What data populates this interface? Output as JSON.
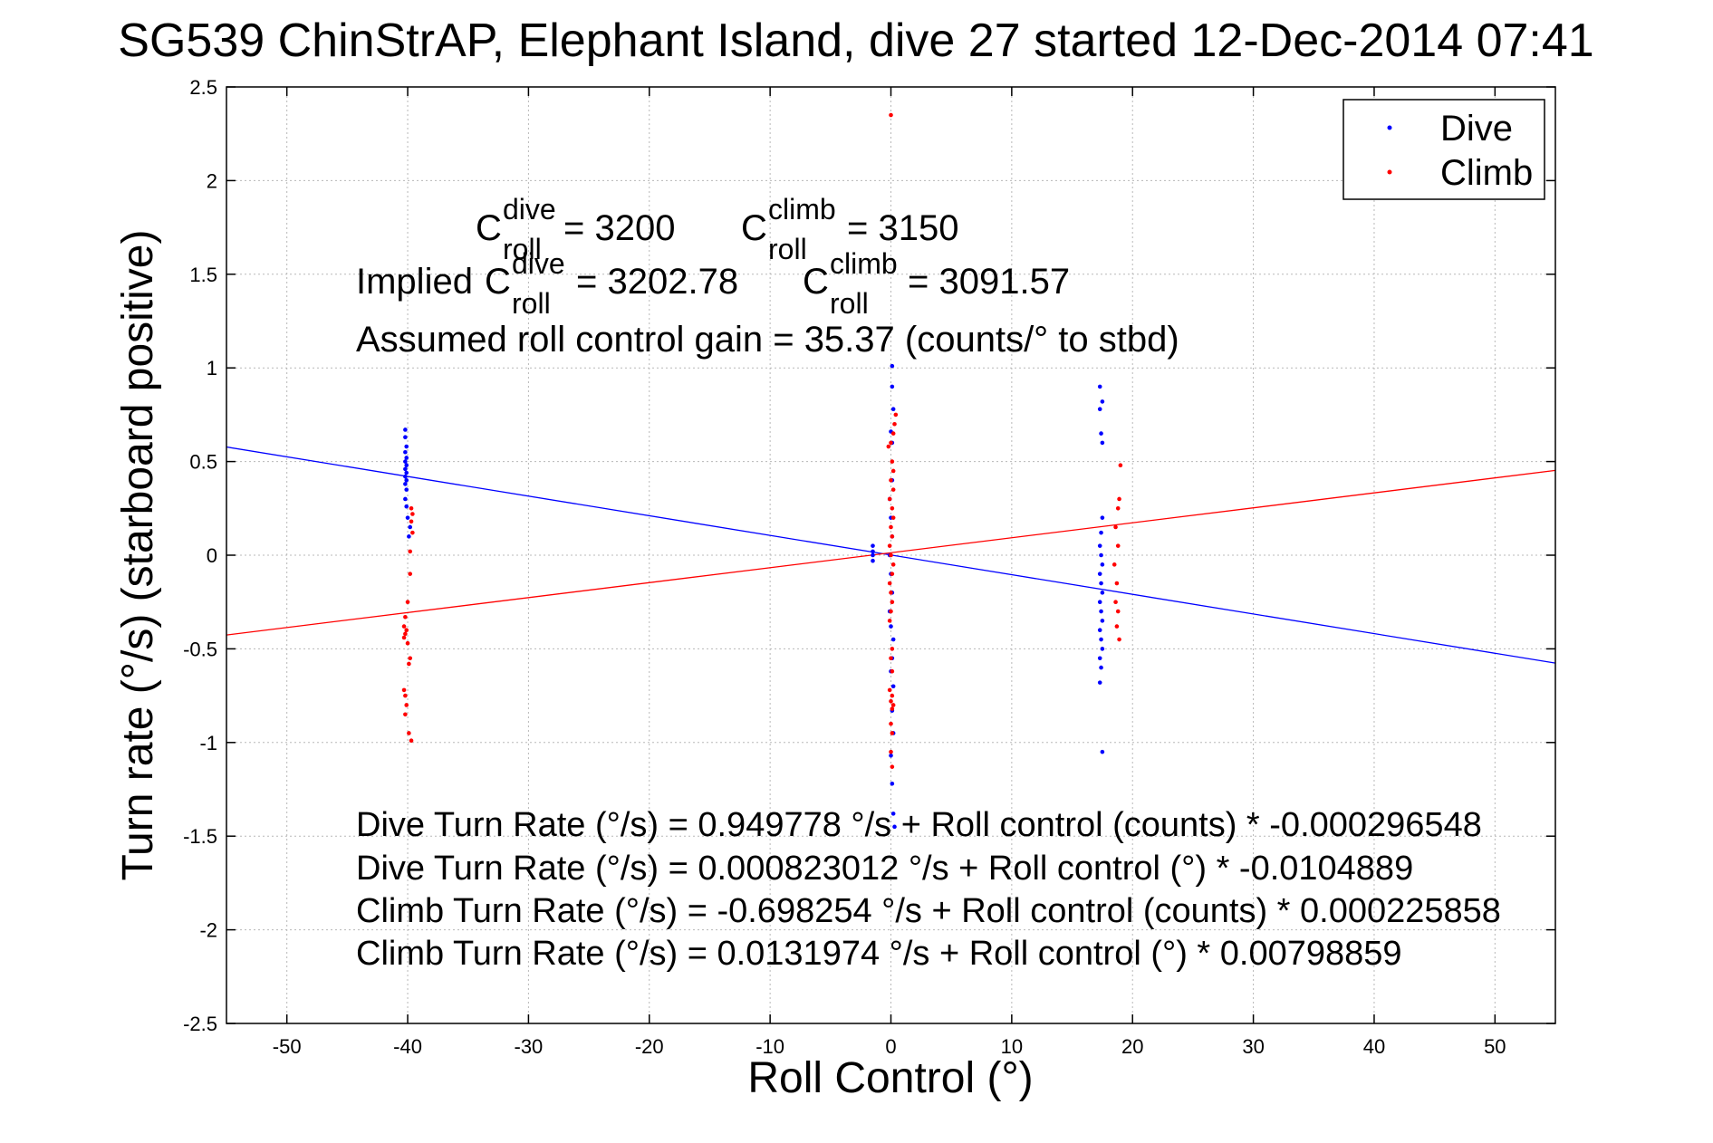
{
  "chart_data": {
    "type": "scatter",
    "title": "SG539 ChinStrAP, Elephant Island, dive 27 started 12-Dec-2014 07:41",
    "xlabel": "Roll Control (°)",
    "ylabel": "Turn rate (°/s) (starboard positive)",
    "xlim": [
      -55,
      55
    ],
    "ylim": [
      -2.5,
      2.5
    ],
    "xticks": [
      -50,
      -40,
      -30,
      -20,
      -10,
      0,
      10,
      20,
      30,
      40,
      50
    ],
    "yticks": [
      -2.5,
      -2,
      -1.5,
      -1,
      -0.5,
      0,
      0.5,
      1,
      1.5,
      2,
      2.5
    ],
    "xtick_labels": [
      "-50",
      "-40",
      "-30",
      "-20",
      "-10",
      "0",
      "10",
      "20",
      "30",
      "40",
      "50"
    ],
    "ytick_labels": [
      "-2.5",
      "-2",
      "-1.5",
      "-1",
      "-0.5",
      "0",
      "0.5",
      "1",
      "1.5",
      "2",
      "2.5"
    ],
    "grid": true,
    "legend_position": "top-right",
    "colors": {
      "dive": "#0000ff",
      "climb": "#ff0000"
    },
    "legend": [
      "Dive",
      "Climb"
    ],
    "series": [
      {
        "name": "Dive",
        "color": "#0000ff",
        "points": [
          [
            -40.2,
            0.67
          ],
          [
            -40.2,
            0.63
          ],
          [
            -40.1,
            0.58
          ],
          [
            -40.2,
            0.55
          ],
          [
            -40.1,
            0.52
          ],
          [
            -40.2,
            0.5
          ],
          [
            -40.1,
            0.48
          ],
          [
            -40.2,
            0.46
          ],
          [
            -40.1,
            0.44
          ],
          [
            -40.2,
            0.42
          ],
          [
            -40.1,
            0.4
          ],
          [
            -40.2,
            0.38
          ],
          [
            -40.1,
            0.35
          ],
          [
            -40.2,
            0.3
          ],
          [
            -40.1,
            0.26
          ],
          [
            -40.0,
            0.2
          ],
          [
            -39.8,
            0.15
          ],
          [
            -39.9,
            0.1
          ],
          [
            -1.5,
            0.05
          ],
          [
            -1.5,
            0.02
          ],
          [
            -1.5,
            0.0
          ],
          [
            -1.5,
            -0.03
          ],
          [
            0.1,
            1.01
          ],
          [
            0.1,
            0.9
          ],
          [
            0.2,
            0.78
          ],
          [
            0.0,
            0.66
          ],
          [
            0.1,
            0.6
          ],
          [
            0.1,
            0.4
          ],
          [
            -0.1,
            0.3
          ],
          [
            0.0,
            0.2
          ],
          [
            0.1,
            0.1
          ],
          [
            -0.1,
            0.0
          ],
          [
            0.0,
            -0.1
          ],
          [
            0.1,
            -0.2
          ],
          [
            -0.1,
            -0.3
          ],
          [
            0.0,
            -0.38
          ],
          [
            0.2,
            -0.45
          ],
          [
            0.1,
            -0.55
          ],
          [
            0.0,
            -0.62
          ],
          [
            0.2,
            -0.7
          ],
          [
            0.1,
            -0.83
          ],
          [
            0.2,
            -0.95
          ],
          [
            0.0,
            -1.07
          ],
          [
            0.1,
            -1.22
          ],
          [
            0.2,
            -1.38
          ],
          [
            0.3,
            -1.45
          ],
          [
            17.3,
            0.9
          ],
          [
            17.5,
            0.82
          ],
          [
            17.3,
            0.78
          ],
          [
            17.4,
            0.65
          ],
          [
            17.5,
            0.6
          ],
          [
            17.5,
            0.2
          ],
          [
            17.4,
            0.12
          ],
          [
            17.3,
            0.05
          ],
          [
            17.4,
            0.0
          ],
          [
            17.5,
            -0.05
          ],
          [
            17.3,
            -0.1
          ],
          [
            17.4,
            -0.15
          ],
          [
            17.5,
            -0.2
          ],
          [
            17.3,
            -0.25
          ],
          [
            17.4,
            -0.3
          ],
          [
            17.5,
            -0.35
          ],
          [
            17.3,
            -0.4
          ],
          [
            17.4,
            -0.45
          ],
          [
            17.5,
            -0.5
          ],
          [
            17.3,
            -0.55
          ],
          [
            17.4,
            -0.6
          ],
          [
            17.3,
            -0.68
          ],
          [
            17.5,
            -1.05
          ]
        ]
      },
      {
        "name": "Climb",
        "color": "#ff0000",
        "points": [
          [
            -39.7,
            0.25
          ],
          [
            -39.6,
            0.22
          ],
          [
            -39.7,
            0.18
          ],
          [
            -39.6,
            0.12
          ],
          [
            -39.8,
            0.02
          ],
          [
            -39.8,
            -0.1
          ],
          [
            -40.0,
            -0.25
          ],
          [
            -40.2,
            -0.33
          ],
          [
            -40.3,
            -0.38
          ],
          [
            -40.1,
            -0.4
          ],
          [
            -40.2,
            -0.42
          ],
          [
            -40.3,
            -0.44
          ],
          [
            -40.0,
            -0.47
          ],
          [
            -39.8,
            -0.55
          ],
          [
            -39.9,
            -0.58
          ],
          [
            -40.3,
            -0.72
          ],
          [
            -40.2,
            -0.75
          ],
          [
            -40.1,
            -0.8
          ],
          [
            -40.2,
            -0.85
          ],
          [
            -39.9,
            -0.95
          ],
          [
            -39.7,
            -0.99
          ],
          [
            0.0,
            2.35
          ],
          [
            0.4,
            0.75
          ],
          [
            0.3,
            0.7
          ],
          [
            0.2,
            0.65
          ],
          [
            0.0,
            0.6
          ],
          [
            -0.2,
            0.58
          ],
          [
            0.1,
            0.5
          ],
          [
            0.2,
            0.45
          ],
          [
            0.0,
            0.4
          ],
          [
            0.2,
            0.35
          ],
          [
            -0.1,
            0.3
          ],
          [
            0.1,
            0.25
          ],
          [
            0.2,
            0.2
          ],
          [
            0.0,
            0.15
          ],
          [
            0.1,
            0.1
          ],
          [
            -0.1,
            0.05
          ],
          [
            0.0,
            0.0
          ],
          [
            0.2,
            -0.05
          ],
          [
            0.1,
            -0.1
          ],
          [
            -0.1,
            -0.15
          ],
          [
            0.0,
            -0.2
          ],
          [
            0.1,
            -0.25
          ],
          [
            0.0,
            -0.3
          ],
          [
            -0.1,
            -0.35
          ],
          [
            0.1,
            -0.5
          ],
          [
            0.0,
            -0.55
          ],
          [
            0.1,
            -0.62
          ],
          [
            -0.1,
            -0.72
          ],
          [
            0.1,
            -0.75
          ],
          [
            0.0,
            -0.78
          ],
          [
            0.2,
            -0.8
          ],
          [
            0.1,
            -0.82
          ],
          [
            0.0,
            -0.9
          ],
          [
            0.1,
            -0.95
          ],
          [
            0.0,
            -1.05
          ],
          [
            0.1,
            -1.13
          ],
          [
            19.0,
            0.48
          ],
          [
            18.9,
            0.3
          ],
          [
            18.8,
            0.25
          ],
          [
            18.6,
            0.15
          ],
          [
            18.8,
            0.05
          ],
          [
            18.5,
            -0.05
          ],
          [
            18.7,
            -0.15
          ],
          [
            18.6,
            -0.25
          ],
          [
            18.8,
            -0.3
          ],
          [
            18.7,
            -0.38
          ],
          [
            18.9,
            -0.45
          ]
        ]
      }
    ],
    "fit_lines": [
      {
        "name": "Dive fit",
        "color": "#0000ff",
        "intercept": 0.000823012,
        "slope": -0.0104889
      },
      {
        "name": "Climb fit",
        "color": "#ff0000",
        "intercept": 0.0131974,
        "slope": 0.00798859
      }
    ],
    "annotations": {
      "c_sym": "C",
      "sub_roll": "roll",
      "sup_dive": "dive",
      "sup_climb": "climb",
      "c_dive_value": "= 3200",
      "c_climb_value": "= 3150",
      "implied_prefix": "Implied",
      "implied_dive_value": "= 3202.78",
      "implied_climb_value": "= 3091.57",
      "gain_text": "Assumed roll control gain = 35.37 (counts/° to stbd)",
      "equations": [
        "Dive Turn Rate (°/s) = 0.949778 °/s + Roll control (counts) * -0.000296548",
        "Dive Turn Rate (°/s) = 0.000823012 °/s + Roll control (°) * -0.0104889",
        "Climb Turn Rate (°/s) = -0.698254 °/s + Roll control (counts) * 0.000225858",
        "Climb Turn Rate (°/s) = 0.0131974 °/s + Roll control (°) * 0.00798859"
      ]
    }
  }
}
